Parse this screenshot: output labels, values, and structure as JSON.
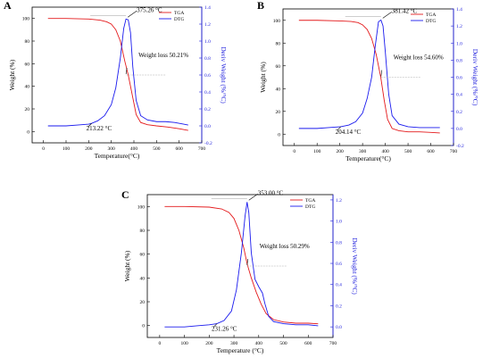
{
  "colors": {
    "tga": "#e41a1c",
    "dtg": "#1a1aee",
    "axis_right": "#2020dd",
    "frame": "#000000",
    "guide": "#b0b0b0"
  },
  "chart_data": [
    {
      "panel_label": "A",
      "type": "line",
      "xlabel": "Temperature(°C)",
      "ylabel": "Weight (%)",
      "y2label": "Deriv Weight (%/°C)",
      "xlim": [
        -50,
        700
      ],
      "ylim": [
        -10,
        110
      ],
      "y2lim": [
        -0.2,
        1.4
      ],
      "xticks": [
        0,
        100,
        200,
        300,
        400,
        500,
        600,
        700
      ],
      "yticks": [
        0,
        20,
        40,
        60,
        80,
        100
      ],
      "y2ticks": [
        -0.2,
        0.0,
        0.2,
        0.4,
        0.6,
        0.8,
        1.0,
        1.2,
        1.4
      ],
      "legend": {
        "placement": "top-right",
        "entries": [
          "TGA",
          "DTG"
        ]
      },
      "annotations": {
        "peak": "375.26 °C",
        "onset": "213.22 °C",
        "loss": "Weight loss 50.21%"
      },
      "series": [
        {
          "name": "TGA",
          "axis": "left",
          "x": [
            20,
            100,
            200,
            250,
            280,
            300,
            320,
            340,
            360,
            375,
            390,
            410,
            430,
            460,
            500,
            550,
            600,
            640
          ],
          "y": [
            100,
            100,
            99.5,
            98.5,
            97,
            95,
            90,
            80,
            62,
            50,
            35,
            15,
            8,
            6,
            5,
            4,
            2.5,
            1
          ]
        },
        {
          "name": "DTG",
          "axis": "right",
          "x": [
            20,
            100,
            150,
            200,
            213,
            240,
            270,
            300,
            320,
            340,
            355,
            365,
            375,
            385,
            395,
            410,
            430,
            460,
            500,
            540,
            580,
            620,
            640
          ],
          "y": [
            0.0,
            0.0,
            0.01,
            0.02,
            0.03,
            0.06,
            0.12,
            0.25,
            0.45,
            0.8,
            1.15,
            1.26,
            1.25,
            1.1,
            0.7,
            0.3,
            0.12,
            0.07,
            0.05,
            0.05,
            0.04,
            0.02,
            0.01
          ]
        }
      ]
    },
    {
      "panel_label": "B",
      "type": "line",
      "xlabel": "Temperature(°C)",
      "ylabel": "Weight (%)",
      "y2label": "Deriv Weight (%/°C)",
      "xlim": [
        -50,
        700
      ],
      "ylim": [
        -10,
        110
      ],
      "y2lim": [
        -0.2,
        1.4
      ],
      "xticks": [
        0,
        100,
        200,
        300,
        400,
        500,
        600,
        700
      ],
      "yticks": [
        0,
        20,
        40,
        60,
        80,
        100
      ],
      "y2ticks": [
        -0.2,
        0.0,
        0.2,
        0.4,
        0.6,
        0.8,
        1.0,
        1.2,
        1.4
      ],
      "legend": {
        "placement": "top-right",
        "entries": [
          "TGA",
          "DTG"
        ]
      },
      "annotations": {
        "peak": "381.42 °C",
        "onset": "204.14 °C",
        "loss": "Weight loss 54.60%"
      },
      "series": [
        {
          "name": "TGA",
          "axis": "left",
          "x": [
            20,
            100,
            200,
            250,
            280,
            300,
            320,
            340,
            360,
            380,
            395,
            410,
            430,
            460,
            500,
            550,
            600,
            640
          ],
          "y": [
            100,
            100,
            99.5,
            99,
            98,
            96,
            92,
            84,
            70,
            50,
            30,
            13,
            5,
            3,
            2,
            2,
            1.5,
            1
          ]
        },
        {
          "name": "DTG",
          "axis": "right",
          "x": [
            20,
            100,
            150,
            204,
            240,
            270,
            300,
            320,
            340,
            355,
            370,
            381,
            390,
            400,
            415,
            430,
            460,
            500,
            550,
            600,
            640
          ],
          "y": [
            0.0,
            0.0,
            0.01,
            0.02,
            0.04,
            0.08,
            0.18,
            0.35,
            0.6,
            0.95,
            1.25,
            1.27,
            1.2,
            0.9,
            0.4,
            0.15,
            0.05,
            0.02,
            0.01,
            0.01,
            0.01
          ]
        }
      ]
    },
    {
      "panel_label": "C",
      "type": "line",
      "xlabel": "Temperature (°C)",
      "ylabel": "Weight (%)",
      "y2label": "Deriv Weight (%/°C)",
      "xlim": [
        -50,
        700
      ],
      "ylim": [
        -10,
        110
      ],
      "y2lim": [
        -0.1,
        1.25
      ],
      "xticks": [
        0,
        100,
        200,
        300,
        400,
        500,
        600,
        700
      ],
      "yticks": [
        0,
        20,
        40,
        60,
        80,
        100
      ],
      "y2ticks": [
        0.0,
        0.2,
        0.4,
        0.6,
        0.8,
        1.0,
        1.2
      ],
      "legend": {
        "placement": "top-right",
        "entries": [
          "TGA",
          "DTG"
        ]
      },
      "annotations": {
        "peak": "353.00 °C",
        "onset": "231.26 °C",
        "loss": "Weight loss 50.29%"
      },
      "series": [
        {
          "name": "TGA",
          "axis": "left",
          "x": [
            20,
            100,
            200,
            250,
            280,
            300,
            320,
            340,
            353,
            370,
            390,
            410,
            430,
            460,
            500,
            550,
            600,
            640
          ],
          "y": [
            100,
            100,
            99.5,
            98,
            95,
            90,
            80,
            65,
            52,
            40,
            28,
            18,
            10,
            5,
            3,
            2,
            2,
            1.5
          ]
        },
        {
          "name": "DTG",
          "axis": "right",
          "x": [
            20,
            100,
            150,
            200,
            231,
            260,
            290,
            310,
            330,
            345,
            353,
            360,
            370,
            385,
            400,
            415,
            425,
            440,
            460,
            500,
            550,
            600,
            640
          ],
          "y": [
            0.0,
            0.0,
            0.01,
            0.02,
            0.03,
            0.06,
            0.15,
            0.35,
            0.7,
            1.05,
            1.18,
            1.08,
            0.7,
            0.45,
            0.38,
            0.32,
            0.22,
            0.1,
            0.05,
            0.03,
            0.02,
            0.02,
            0.01
          ]
        }
      ]
    }
  ]
}
